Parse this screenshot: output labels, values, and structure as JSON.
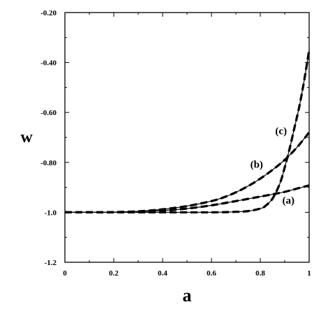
{
  "chart_data": {
    "type": "line",
    "xlabel": "a",
    "ylabel": "w",
    "xlim": [
      0,
      1
    ],
    "ylim": [
      -1.2,
      -0.2
    ],
    "x_ticks": [
      "0",
      "0.2",
      "0.4",
      "0.6",
      "0.8",
      "1"
    ],
    "y_ticks": [
      "-0.20",
      "-0.40",
      "-0.60",
      "-0.80",
      "-1.0",
      "-1.2"
    ],
    "grid": false,
    "series": [
      {
        "name": "(a)",
        "x": [
          0,
          0.1,
          0.2,
          0.3,
          0.4,
          0.5,
          0.6,
          0.7,
          0.8,
          0.85,
          0.9,
          0.95,
          1.0
        ],
        "y": [
          -1.0,
          -1.0,
          -1.0,
          -0.997,
          -0.993,
          -0.985,
          -0.972,
          -0.955,
          -0.937,
          -0.928,
          -0.918,
          -0.905,
          -0.892
        ]
      },
      {
        "name": "(b)",
        "x": [
          0,
          0.1,
          0.2,
          0.3,
          0.4,
          0.5,
          0.6,
          0.65,
          0.7,
          0.75,
          0.8,
          0.85,
          0.9,
          0.95,
          1.0
        ],
        "y": [
          -1.0,
          -1.0,
          -0.999,
          -0.996,
          -0.988,
          -0.975,
          -0.955,
          -0.94,
          -0.92,
          -0.895,
          -0.865,
          -0.83,
          -0.79,
          -0.74,
          -0.68
        ]
      },
      {
        "name": "(c)",
        "x": [
          0,
          0.2,
          0.4,
          0.6,
          0.7,
          0.75,
          0.8,
          0.82,
          0.85,
          0.88,
          0.9,
          0.92,
          0.94,
          0.96,
          0.98,
          1.0
        ],
        "y": [
          -1.0,
          -1.0,
          -1.0,
          -1.0,
          -0.998,
          -0.995,
          -0.985,
          -0.975,
          -0.945,
          -0.885,
          -0.82,
          -0.745,
          -0.66,
          -0.575,
          -0.47,
          -0.35
        ]
      }
    ],
    "curve_labels": [
      {
        "text": "(a)",
        "x": 0.915,
        "y": -0.952
      },
      {
        "text": "(b)",
        "x": 0.785,
        "y": -0.807
      },
      {
        "text": "(c)",
        "x": 0.885,
        "y": -0.673
      }
    ]
  }
}
